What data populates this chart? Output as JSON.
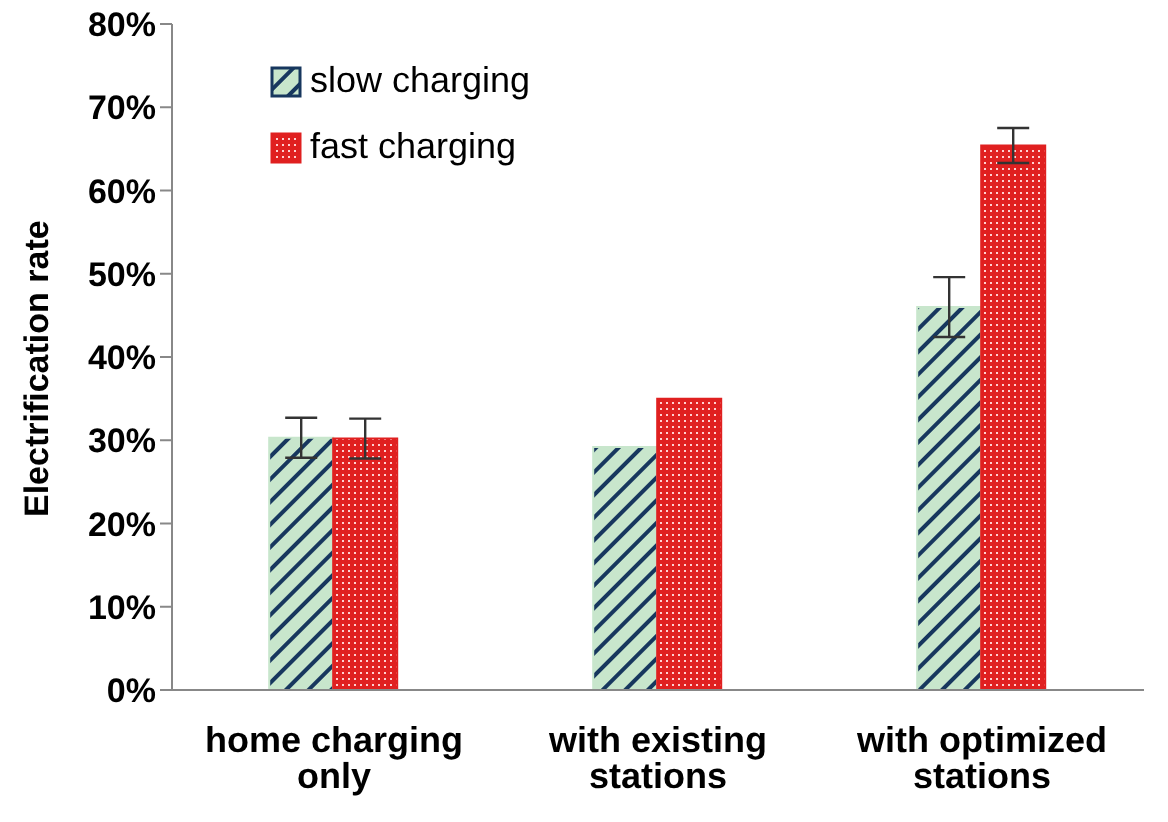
{
  "chart_data": {
    "type": "bar",
    "ylabel": "Electrification rate",
    "categories": [
      "home charging only",
      "with existing stations",
      "with optimized stations"
    ],
    "series": [
      {
        "name": "slow charging",
        "color": "#c8e6cc",
        "values": [
          30.3,
          29.2,
          46
        ],
        "errors": [
          2.4,
          null,
          3.6
        ]
      },
      {
        "name": "fast charging",
        "color": "#e02020",
        "values": [
          30.2,
          35,
          65.4
        ],
        "errors": [
          2.4,
          null,
          2.1
        ]
      }
    ],
    "ylim": [
      0,
      80
    ],
    "yticks": [
      {
        "value": 0,
        "label": "0%"
      },
      {
        "value": 10,
        "label": "10%"
      },
      {
        "value": 20,
        "label": "20%"
      },
      {
        "value": 30,
        "label": "30%"
      },
      {
        "value": 40,
        "label": "40%"
      },
      {
        "value": 50,
        "label": "50%"
      },
      {
        "value": 60,
        "label": "60%"
      },
      {
        "value": 70,
        "label": "70%"
      },
      {
        "value": 80,
        "label": "80%"
      }
    ],
    "grid": false,
    "legend": "top left"
  }
}
